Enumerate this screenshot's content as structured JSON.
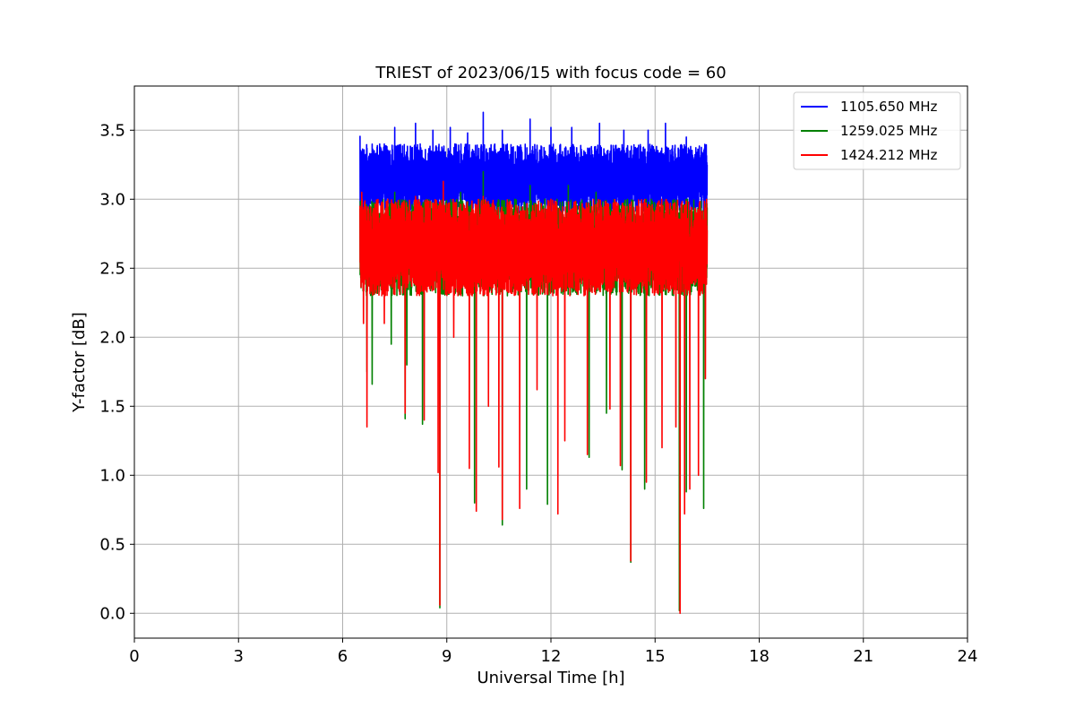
{
  "chart_data": {
    "type": "line",
    "title": "TRIEST of 2023/06/15 with focus code = 60",
    "xlabel": "Universal Time [h]",
    "ylabel": "Y-factor [dB]",
    "xlim": [
      0,
      24
    ],
    "ylim": [
      -0.18,
      3.82
    ],
    "x_ticks": [
      0,
      3,
      6,
      9,
      12,
      15,
      18,
      21,
      24
    ],
    "y_ticks": [
      0.0,
      0.5,
      1.0,
      1.5,
      2.0,
      2.5,
      3.0,
      3.5
    ],
    "grid": true,
    "legend_position": "top-right",
    "series": [
      {
        "name": "1105.650 MHz",
        "color": "#0000ff",
        "time_range": [
          6.5,
          16.5
        ],
        "typical_range": [
          2.9,
          3.4
        ],
        "peak_points": [
          [
            6.5,
            3.46
          ],
          [
            7.5,
            3.52
          ],
          [
            8.1,
            3.55
          ],
          [
            8.6,
            3.5
          ],
          [
            9.1,
            3.52
          ],
          [
            9.6,
            3.48
          ],
          [
            10.05,
            3.63
          ],
          [
            10.6,
            3.5
          ],
          [
            11.4,
            3.58
          ],
          [
            12.0,
            3.52
          ],
          [
            12.6,
            3.52
          ],
          [
            13.4,
            3.55
          ],
          [
            14.1,
            3.5
          ],
          [
            14.8,
            3.5
          ],
          [
            15.3,
            3.55
          ],
          [
            15.9,
            3.45
          ],
          [
            16.45,
            3.3
          ]
        ],
        "dip_points": [
          [
            6.6,
            2.95
          ],
          [
            7.4,
            2.9
          ],
          [
            8.4,
            2.85
          ],
          [
            9.7,
            2.9
          ],
          [
            10.9,
            2.95
          ],
          [
            12.3,
            2.95
          ],
          [
            13.6,
            2.9
          ],
          [
            14.6,
            2.95
          ],
          [
            15.4,
            2.9
          ],
          [
            16.2,
            2.95
          ]
        ]
      },
      {
        "name": "1259.025 MHz",
        "color": "#008000",
        "time_range": [
          6.5,
          16.5
        ],
        "typical_range": [
          2.3,
          3.0
        ],
        "peak_points": [
          [
            7.5,
            3.05
          ],
          [
            9.4,
            3.05
          ],
          [
            10.05,
            3.2
          ],
          [
            11.4,
            3.1
          ],
          [
            12.5,
            3.1
          ],
          [
            13.3,
            3.05
          ],
          [
            15.2,
            2.95
          ]
        ],
        "dip_points": [
          [
            6.7,
            1.75
          ],
          [
            6.85,
            1.66
          ],
          [
            7.4,
            1.95
          ],
          [
            7.85,
            1.8
          ],
          [
            7.8,
            1.41
          ],
          [
            8.3,
            1.37
          ],
          [
            8.8,
            0.04
          ],
          [
            9.8,
            0.8
          ],
          [
            10.6,
            0.64
          ],
          [
            11.3,
            0.9
          ],
          [
            11.9,
            0.79
          ],
          [
            13.1,
            1.13
          ],
          [
            13.6,
            1.45
          ],
          [
            14.05,
            1.04
          ],
          [
            14.3,
            0.37
          ],
          [
            14.7,
            0.9
          ],
          [
            15.7,
            0.02
          ],
          [
            15.9,
            0.88
          ],
          [
            16.4,
            0.76
          ]
        ]
      },
      {
        "name": "1424.212 MHz",
        "color": "#ff0000",
        "time_range": [
          6.5,
          16.5
        ],
        "typical_range": [
          2.3,
          3.0
        ],
        "peak_points": [
          [
            6.55,
            3.05
          ],
          [
            7.3,
            3.0
          ],
          [
            8.1,
            3.02
          ],
          [
            8.9,
            3.13
          ],
          [
            10.05,
            3.02
          ],
          [
            11.1,
            3.0
          ],
          [
            12.0,
            3.0
          ],
          [
            13.1,
            2.95
          ],
          [
            14.1,
            2.95
          ],
          [
            15.2,
            2.85
          ],
          [
            16.35,
            2.8
          ]
        ],
        "dip_points": [
          [
            6.6,
            2.1
          ],
          [
            6.7,
            1.35
          ],
          [
            7.2,
            2.1
          ],
          [
            7.8,
            1.45
          ],
          [
            8.35,
            1.4
          ],
          [
            8.75,
            1.02
          ],
          [
            8.8,
            0.06
          ],
          [
            9.2,
            2.0
          ],
          [
            9.65,
            1.05
          ],
          [
            9.85,
            0.74
          ],
          [
            10.2,
            1.5
          ],
          [
            10.5,
            1.06
          ],
          [
            10.6,
            0.68
          ],
          [
            11.1,
            0.76
          ],
          [
            11.6,
            1.62
          ],
          [
            12.2,
            0.72
          ],
          [
            12.4,
            1.25
          ],
          [
            13.05,
            1.15
          ],
          [
            13.7,
            1.48
          ],
          [
            14.0,
            1.07
          ],
          [
            14.3,
            0.38
          ],
          [
            14.75,
            0.95
          ],
          [
            15.2,
            1.2
          ],
          [
            15.6,
            1.35
          ],
          [
            15.72,
            0.0
          ],
          [
            15.85,
            0.72
          ],
          [
            16.0,
            0.9
          ],
          [
            16.25,
            1.0
          ],
          [
            16.45,
            1.7
          ]
        ]
      }
    ]
  }
}
